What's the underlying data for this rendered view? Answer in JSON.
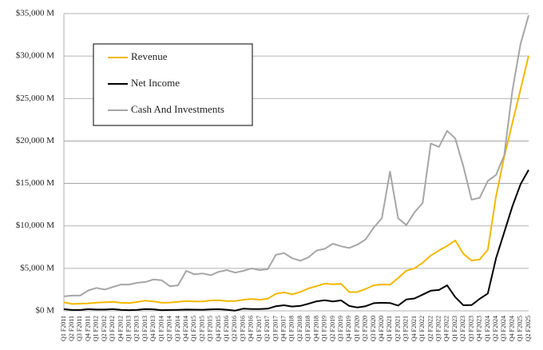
{
  "chart_data": {
    "type": "line",
    "categories": [
      "Q1 F2011",
      "Q2 F2011",
      "Q3 F2011",
      "Q4 F2011",
      "Q1 F2012",
      "Q2 F2012",
      "Q3 F2012",
      "Q4 F2012",
      "Q1 F2013",
      "Q2 F2013",
      "Q3 F2013",
      "Q4 F2013",
      "Q1 F2014",
      "Q2 F2014",
      "Q3 F2014",
      "Q4 F2014",
      "Q1 F2015",
      "Q2 F2015",
      "Q3 F2015",
      "Q4 F2015",
      "Q1 F2016",
      "Q2 F2016",
      "Q3 F2016",
      "Q4 F2016",
      "Q1 F2017",
      "Q2 F2017",
      "Q3 F2017",
      "Q4 F2017",
      "Q1 F2018",
      "Q2 F2018",
      "Q3 F2018",
      "Q4 F2018",
      "Q1 F2019",
      "Q2 F2019",
      "Q3 F2019",
      "Q4 F2019",
      "Q1 F2020",
      "Q2 F2020",
      "Q3 F2020",
      "Q4 F2020",
      "Q1 F2021",
      "Q2 F2021",
      "Q3 F2021",
      "Q4 F2021",
      "Q1 F2022",
      "Q2 F2022",
      "Q3 F2022",
      "Q4 F2022",
      "Q1 F2023",
      "Q2 F2023",
      "Q3 F2023",
      "Q4 F2023",
      "Q1 F2024",
      "Q2 F2024",
      "Q3 F2024",
      "Q4 F2024",
      "Q1 F2025",
      "Q2 F2025"
    ],
    "series": [
      {
        "name": "Revenue",
        "color": "#f2b800",
        "values": [
          1002,
          811,
          844,
          886,
          962,
          1017,
          1066,
          954,
          924,
          1044,
          1204,
          1107,
          954,
          977,
          1054,
          1144,
          1103,
          1103,
          1225,
          1251,
          1151,
          1153,
          1305,
          1401,
          1305,
          1428,
          2004,
          2173,
          1937,
          2230,
          2636,
          2911,
          3207,
          3123,
          3181,
          2205,
          2220,
          2579,
          3014,
          3105,
          3080,
          3866,
          4726,
          5003,
          5661,
          6507,
          7103,
          7643,
          8288,
          6704,
          5931,
          6051,
          7192,
          13507,
          18120,
          22103,
          26044,
          30040
        ]
      },
      {
        "name": "Net Income",
        "color": "#000000",
        "values": [
          200,
          100,
          100,
          200,
          150,
          150,
          200,
          120,
          80,
          120,
          210,
          175,
          80,
          100,
          120,
          150,
          140,
          130,
          175,
          195,
          135,
          30,
          250,
          210,
          210,
          255,
          545,
          655,
          510,
          585,
          840,
          1120,
          1245,
          1100,
          1230,
          570,
          395,
          550,
          900,
          950,
          920,
          620,
          1340,
          1460,
          1910,
          2370,
          2460,
          3000,
          1620,
          660,
          680,
          1410,
          2040,
          6190,
          9240,
          12290,
          14880,
          16600
        ]
      },
      {
        "name": "Cash And Investments",
        "color": "#a6a6a6",
        "values": [
          1700,
          1800,
          1800,
          2400,
          2700,
          2500,
          2800,
          3100,
          3100,
          3300,
          3400,
          3700,
          3600,
          2900,
          3000,
          4700,
          4300,
          4400,
          4200,
          4600,
          4800,
          4500,
          4700,
          5000,
          4800,
          4900,
          6600,
          6800,
          6200,
          5900,
          6300,
          7100,
          7300,
          7900,
          7600,
          7400,
          7800,
          8400,
          9800,
          10900,
          16400,
          10900,
          10100,
          11600,
          12700,
          19700,
          19300,
          21200,
          20300,
          17000,
          13100,
          13300,
          15300,
          16000,
          18300,
          25900,
          31400,
          34800
        ]
      }
    ],
    "ylim": [
      0,
      35000
    ],
    "yticks": [
      {
        "value": 0,
        "label": "$0 M"
      },
      {
        "value": 5000,
        "label": "$5,000 M"
      },
      {
        "value": 10000,
        "label": "$10,000 M"
      },
      {
        "value": 15000,
        "label": "$15,000 M"
      },
      {
        "value": 20000,
        "label": "$20,000 M"
      },
      {
        "value": 25000,
        "label": "$25,000 M"
      },
      {
        "value": 30000,
        "label": "$30,000 M"
      },
      {
        "value": 35000,
        "label": "$35,000 M"
      }
    ],
    "grid": true
  }
}
